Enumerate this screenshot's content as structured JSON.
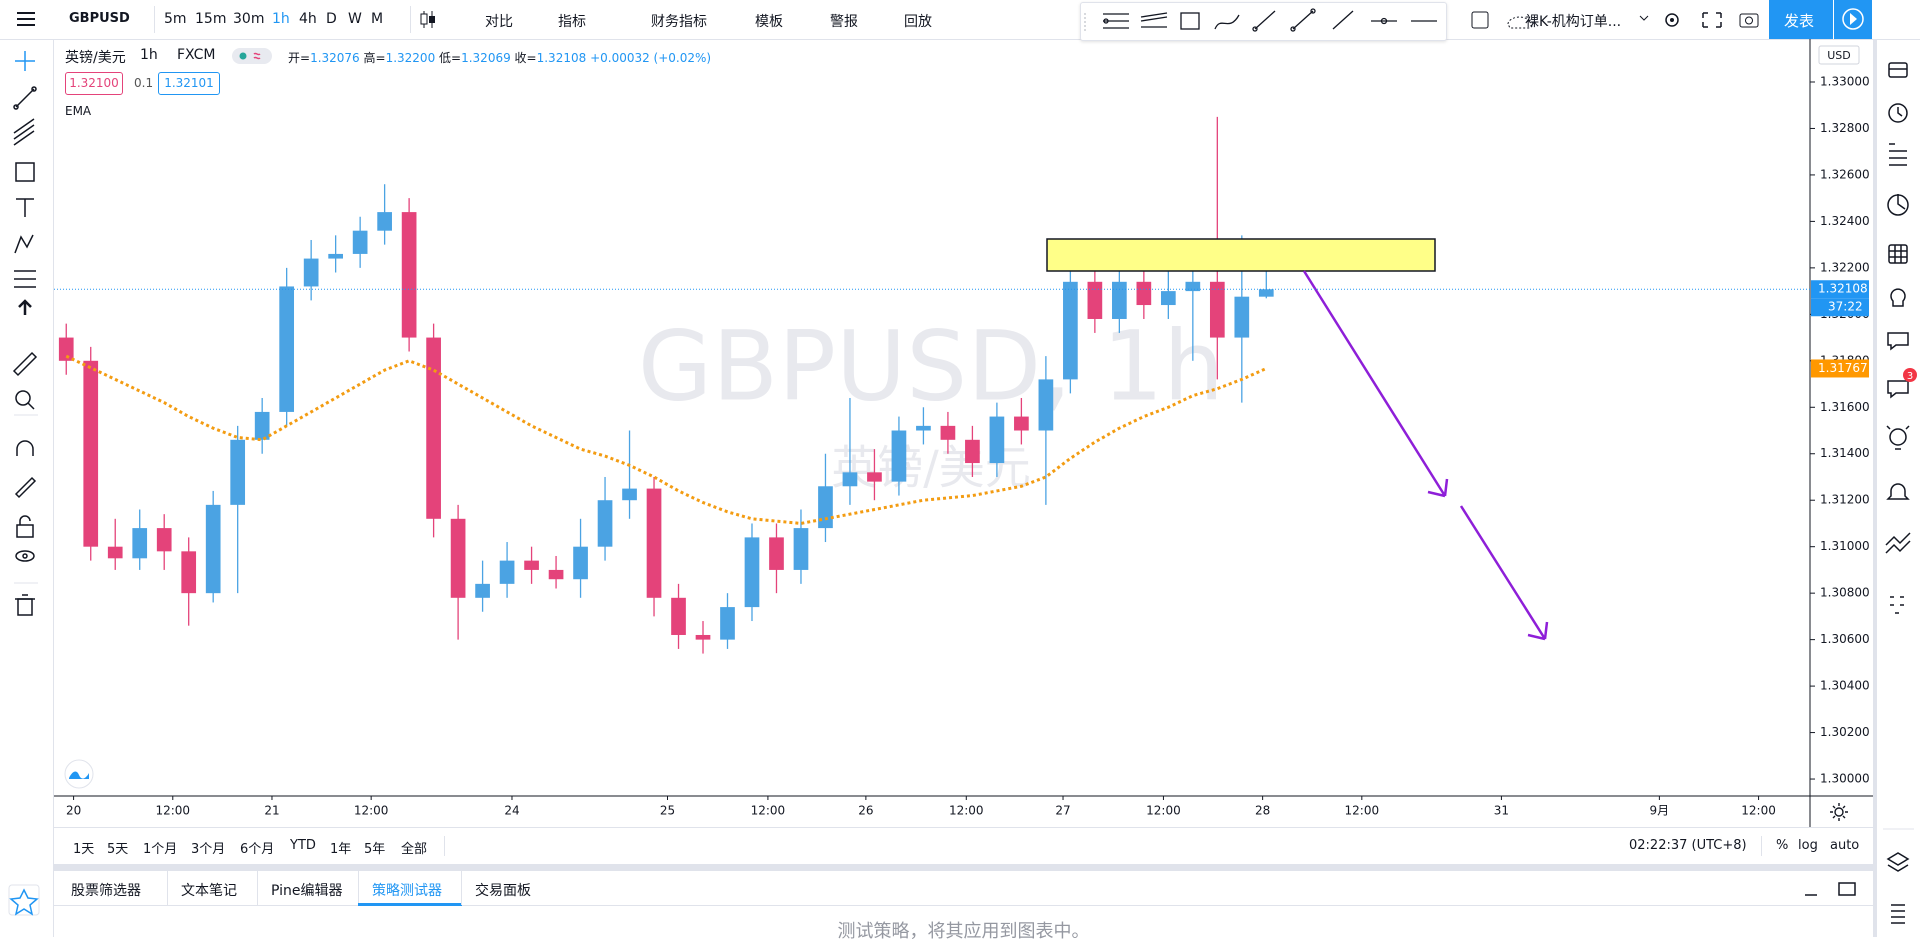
{
  "top_toolbar": {
    "symbol": "GBPUSD",
    "intervals": [
      "5m",
      "15m",
      "30m",
      "1h",
      "4h",
      "D",
      "W",
      "M"
    ],
    "active_interval": 3,
    "buttons": [
      "对比",
      "指标",
      "财务指标",
      "模板",
      "警报",
      "回放"
    ],
    "layout_name": "裸K-机构订单...",
    "publish": "发表"
  },
  "legend": {
    "symbol_name": "英镑/美元",
    "interval": "1h",
    "exchange": "FXCM",
    "open_label": "开=",
    "open": "1.32076",
    "high_label": "高=",
    "high": "1.32200",
    "low_label": "低=",
    "low": "1.32069",
    "close_label": "收=",
    "close": "1.32108",
    "change": "+0.00032 (+0.02%)",
    "sell_price": "1.32100",
    "spread": "0.1",
    "buy_price": "1.32101",
    "indicator": "EMA"
  },
  "watermark": {
    "title": "GBPUSD, 1h",
    "subtitle": "英镑/美元"
  },
  "chart_data": {
    "type": "candlestick",
    "currency": "USD",
    "up_color": "#4ba3e3",
    "down_color": "#e4437a",
    "open": [
      1.319,
      1.318,
      1.31,
      1.3095,
      1.3108,
      1.3098,
      1.308,
      1.3118,
      1.3146,
      1.3158,
      1.3212,
      1.3224,
      1.3226,
      1.3236,
      1.3244,
      1.319,
      1.3112,
      1.3078,
      1.3084,
      1.3094,
      1.309,
      1.3086,
      1.31,
      1.312,
      1.3125,
      1.3078,
      1.3062,
      1.306,
      1.3074,
      1.3104,
      1.309,
      1.3108,
      1.3126,
      1.3132,
      1.3128,
      1.315,
      1.3152,
      1.3146,
      1.3136,
      1.3156,
      1.315,
      1.3172,
      1.3214,
      1.3198,
      1.3214,
      1.3204,
      1.321,
      1.3214,
      1.319,
      1.32076
    ],
    "high": [
      1.3196,
      1.3186,
      1.3112,
      1.3116,
      1.3114,
      1.3104,
      1.3124,
      1.3152,
      1.3164,
      1.322,
      1.3232,
      1.3234,
      1.3242,
      1.3256,
      1.325,
      1.3196,
      1.3118,
      1.3094,
      1.3102,
      1.31,
      1.3096,
      1.3112,
      1.313,
      1.315,
      1.313,
      1.3084,
      1.3068,
      1.308,
      1.311,
      1.311,
      1.3116,
      1.314,
      1.3164,
      1.3142,
      1.3156,
      1.316,
      1.3158,
      1.3152,
      1.3162,
      1.3164,
      1.3182,
      1.3222,
      1.322,
      1.3226,
      1.322,
      1.3232,
      1.323,
      1.3285,
      1.3234,
      1.322
    ],
    "low": [
      1.3174,
      1.3094,
      1.309,
      1.309,
      1.309,
      1.3066,
      1.3076,
      1.308,
      1.314,
      1.3152,
      1.3206,
      1.3218,
      1.322,
      1.323,
      1.3184,
      1.3104,
      1.306,
      1.3072,
      1.3078,
      1.3084,
      1.3082,
      1.3078,
      1.3094,
      1.3112,
      1.307,
      1.3056,
      1.3054,
      1.3056,
      1.3068,
      1.308,
      1.3084,
      1.3102,
      1.3118,
      1.312,
      1.3122,
      1.3144,
      1.314,
      1.313,
      1.313,
      1.3144,
      1.3118,
      1.3166,
      1.3192,
      1.3192,
      1.3198,
      1.3198,
      1.318,
      1.3172,
      1.3162,
      1.32069
    ],
    "close": [
      1.318,
      1.31,
      1.3095,
      1.3108,
      1.3098,
      1.308,
      1.3118,
      1.3146,
      1.3158,
      1.3212,
      1.3224,
      1.3226,
      1.3236,
      1.3244,
      1.319,
      1.3112,
      1.3078,
      1.3084,
      1.3094,
      1.309,
      1.3086,
      1.31,
      1.312,
      1.3125,
      1.3078,
      1.3062,
      1.306,
      1.3074,
      1.3104,
      1.309,
      1.3108,
      1.3126,
      1.3132,
      1.3128,
      1.315,
      1.3152,
      1.3146,
      1.3136,
      1.3156,
      1.315,
      1.3172,
      1.3214,
      1.3198,
      1.3214,
      1.3204,
      1.321,
      1.3214,
      1.319,
      1.32076,
      1.32108
    ],
    "series": [
      {
        "name": "EMA",
        "color": "#f39c12",
        "values": [
          1.3182,
          1.3177,
          1.3172,
          1.3167,
          1.3162,
          1.3156,
          1.3151,
          1.3147,
          1.3146,
          1.3152,
          1.3158,
          1.3164,
          1.317,
          1.3176,
          1.318,
          1.3176,
          1.317,
          1.3164,
          1.3158,
          1.3152,
          1.3147,
          1.3142,
          1.3139,
          1.3135,
          1.313,
          1.3124,
          1.3119,
          1.3115,
          1.3112,
          1.3111,
          1.311,
          1.3112,
          1.3114,
          1.3116,
          1.3118,
          1.312,
          1.3121,
          1.3122,
          1.3124,
          1.3126,
          1.313,
          1.3138,
          1.3145,
          1.3151,
          1.3156,
          1.316,
          1.3165,
          1.3168,
          1.3172,
          1.31767
        ]
      }
    ],
    "xlim": [
      0,
      71.7
    ],
    "xticks": [
      {
        "value": 0.8,
        "label": "20"
      },
      {
        "value": 4.85,
        "label": "12:00"
      },
      {
        "value": 8.9,
        "label": "21"
      },
      {
        "value": 12.95,
        "label": "12:00"
      },
      {
        "value": 18.7,
        "label": "24"
      },
      {
        "value": 25.05,
        "label": "25"
      },
      {
        "value": 29.15,
        "label": "12:00"
      },
      {
        "value": 33.15,
        "label": "26"
      },
      {
        "value": 37.25,
        "label": "12:00"
      },
      {
        "value": 41.2,
        "label": "27"
      },
      {
        "value": 45.3,
        "label": "12:00"
      },
      {
        "value": 49.35,
        "label": "28"
      },
      {
        "value": 53.4,
        "label": "12:00"
      },
      {
        "value": 59.1,
        "label": "31"
      },
      {
        "value": 65.55,
        "label": "9月"
      },
      {
        "value": 69.6,
        "label": "12:00"
      }
    ],
    "ylim": [
      1.29927,
      1.33185
    ],
    "yticks": [
      {
        "value": 1.3,
        "label": "1.30000"
      },
      {
        "value": 1.302,
        "label": "1.30200"
      },
      {
        "value": 1.304,
        "label": "1.30400"
      },
      {
        "value": 1.306,
        "label": "1.30600"
      },
      {
        "value": 1.308,
        "label": "1.30800"
      },
      {
        "value": 1.31,
        "label": "1.31000"
      },
      {
        "value": 1.312,
        "label": "1.31200"
      },
      {
        "value": 1.314,
        "label": "1.31400"
      },
      {
        "value": 1.316,
        "label": "1.31600"
      },
      {
        "value": 1.318,
        "label": "1.31800"
      },
      {
        "value": 1.32,
        "label": "1.32000"
      },
      {
        "value": 1.322,
        "label": "1.32200"
      },
      {
        "value": 1.324,
        "label": "1.32400"
      },
      {
        "value": 1.326,
        "label": "1.32600"
      },
      {
        "value": 1.328,
        "label": "1.32800"
      },
      {
        "value": 1.33,
        "label": "1.33000"
      }
    ],
    "grid": false,
    "price_labels": [
      {
        "value": 1.32108,
        "label": "1.32108",
        "color": "#2196f3"
      },
      {
        "value": 1.31767,
        "label": "1.31767",
        "color": "#ff9800"
      }
    ],
    "countdown": "37:22"
  },
  "bottom_bar": {
    "ranges": [
      "1天",
      "5天",
      "1个月",
      "3个月",
      "6个月",
      "YTD",
      "1年",
      "5年",
      "全部"
    ],
    "clock": "02:22:37 (UTC+8)",
    "scale_options": [
      "%",
      "log",
      "auto"
    ]
  },
  "panel_tabs": {
    "tabs": [
      "股票筛选器",
      "文本笔记",
      "Pine编辑器",
      "策略测试器",
      "交易面板"
    ],
    "active": 3,
    "message": "测试策略，将其应用到图表中。"
  },
  "sidebar_badge": "3"
}
